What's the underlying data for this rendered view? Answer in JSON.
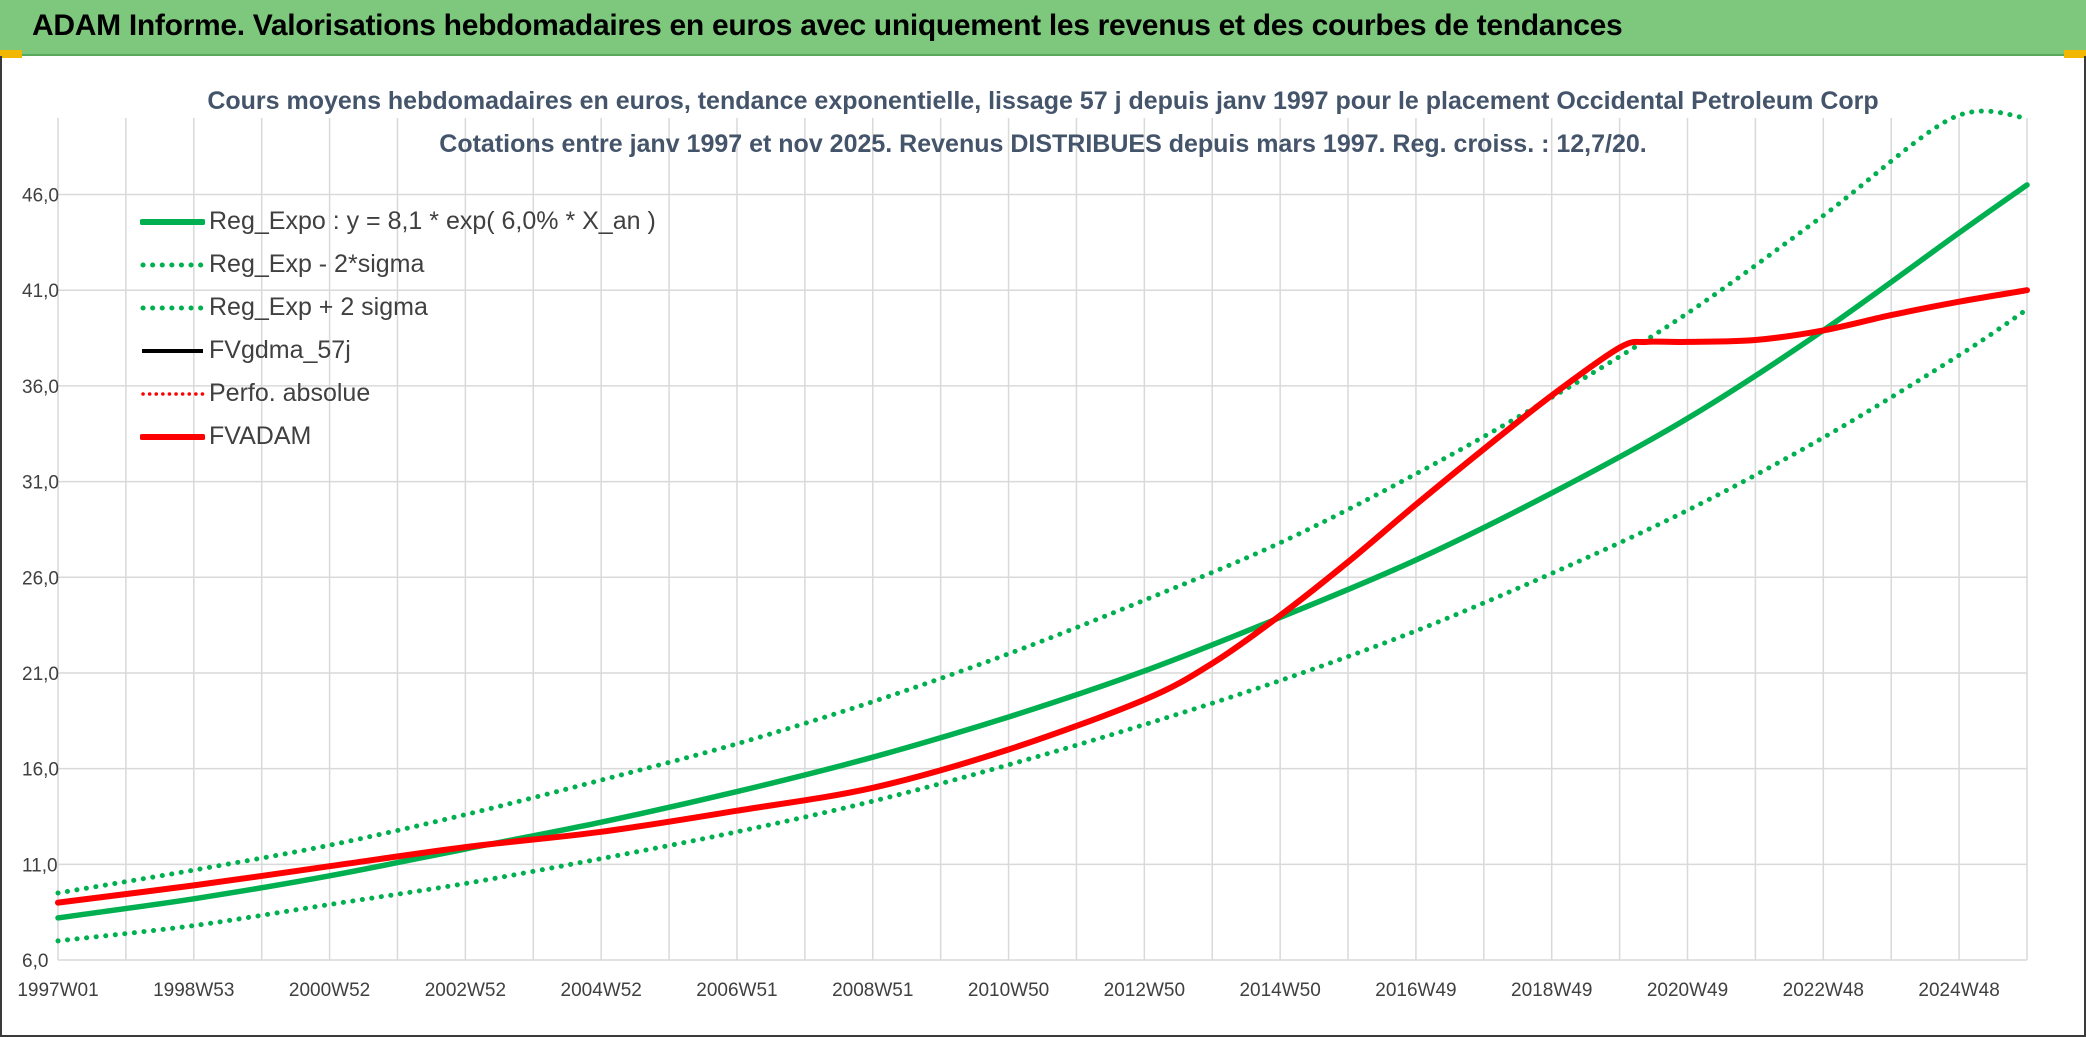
{
  "header": {
    "title": "ADAM Informe. Valorisations hebdomadaires en euros avec uniquement les revenus et des courbes de tendances"
  },
  "chart_data": {
    "type": "line",
    "title": "Cours moyens hebdomadaires en euros, tendance exponentielle, lissage 57 j depuis janv 1997 pour le placement Occidental Petroleum Corp",
    "subtitle": "Cotations entre janv 1997 et nov 2025. Revenus DISTRIBUES depuis mars 1997. Reg. croiss. : 12,7/20.",
    "xlabel": "",
    "ylabel": "",
    "x_range": [
      1997.0,
      2026.0
    ],
    "ylim": [
      6.0,
      50.0
    ],
    "grid": true,
    "legend_position": "top-left",
    "x_ticks": [
      {
        "label": "1997W01",
        "x": 1997.0
      },
      {
        "label": "1998W53",
        "x": 1999.0
      },
      {
        "label": "2000W52",
        "x": 2001.0
      },
      {
        "label": "2002W52",
        "x": 2003.0
      },
      {
        "label": "2004W52",
        "x": 2005.0
      },
      {
        "label": "2006W51",
        "x": 2007.0
      },
      {
        "label": "2008W51",
        "x": 2009.0
      },
      {
        "label": "2010W50",
        "x": 2011.0
      },
      {
        "label": "2012W50",
        "x": 2013.0
      },
      {
        "label": "2014W50",
        "x": 2015.0
      },
      {
        "label": "2016W49",
        "x": 2017.0
      },
      {
        "label": "2018W49",
        "x": 2019.0
      },
      {
        "label": "2020W49",
        "x": 2021.0
      },
      {
        "label": "2022W48",
        "x": 2023.0
      },
      {
        "label": "2024W48",
        "x": 2025.0
      }
    ],
    "y_ticks": [
      {
        "label": "6,0",
        "y": 6.0
      },
      {
        "label": "11,0",
        "y": 11.0
      },
      {
        "label": "16,0",
        "y": 16.0
      },
      {
        "label": "21,0",
        "y": 21.0
      },
      {
        "label": "26,0",
        "y": 26.0
      },
      {
        "label": "31,0",
        "y": 31.0
      },
      {
        "label": "36,0",
        "y": 36.0
      },
      {
        "label": "41,0",
        "y": 41.0
      },
      {
        "label": "46,0",
        "y": 46.0
      }
    ],
    "series": [
      {
        "name": "Reg_Expo : y = 8,1 * exp( 6,0% *  X_an )",
        "color": "#00b050",
        "style": "solid",
        "x": [
          1997,
          1999,
          2001,
          2003,
          2005,
          2007,
          2009,
          2011,
          2013,
          2015,
          2017,
          2019,
          2021,
          2023,
          2025,
          2026
        ],
        "y": [
          8.2,
          9.2,
          10.4,
          11.8,
          13.2,
          14.8,
          16.6,
          18.7,
          21.1,
          23.9,
          26.9,
          30.4,
          34.3,
          38.9,
          44.0,
          46.5
        ]
      },
      {
        "name": "Reg_Exp - 2*sigma",
        "color": "#00b050",
        "style": "dotted",
        "x": [
          1997,
          1999,
          2001,
          2003,
          2005,
          2007,
          2009,
          2011,
          2013,
          2015,
          2017,
          2019,
          2021,
          2023,
          2025,
          2026
        ],
        "y": [
          7.0,
          7.8,
          8.9,
          10.0,
          11.3,
          12.7,
          14.3,
          16.2,
          18.3,
          20.6,
          23.2,
          26.2,
          29.5,
          33.3,
          37.6,
          40.0
        ]
      },
      {
        "name": "Reg_Exp + 2 sigma",
        "color": "#00b050",
        "style": "dotted",
        "x": [
          1997,
          1999,
          2001,
          2003,
          2005,
          2007,
          2009,
          2011,
          2013,
          2015,
          2017,
          2019,
          2021,
          2023,
          2024.9,
          2026
        ],
        "y": [
          9.5,
          10.7,
          12.0,
          13.6,
          15.4,
          17.3,
          19.5,
          22.0,
          24.8,
          27.8,
          31.4,
          35.4,
          39.8,
          44.9,
          50.0,
          50.0
        ]
      },
      {
        "name": "FVgdma_57j",
        "color": "#000000",
        "style": "solid",
        "x": [],
        "y": []
      },
      {
        "name": "Perfo. absolue",
        "color": "#ff0000",
        "style": "dotted",
        "x": [],
        "y": []
      },
      {
        "name": "FVADAM",
        "color": "#ff0000",
        "style": "solid",
        "x": [
          1997,
          1999,
          2001,
          2003,
          2005,
          2007,
          2009,
          2011,
          2013,
          2014,
          2015,
          2016,
          2017,
          2018,
          2019,
          2020,
          2020.4,
          2021,
          2022,
          2023,
          2024,
          2025,
          2026
        ],
        "y": [
          9.0,
          9.9,
          10.9,
          11.9,
          12.7,
          13.8,
          15.0,
          17.0,
          19.6,
          21.5,
          24.0,
          26.8,
          29.8,
          32.7,
          35.5,
          38.0,
          38.3,
          38.3,
          38.4,
          38.9,
          39.7,
          40.4,
          41.0
        ]
      }
    ]
  },
  "colors": {
    "banner_bg": "#7dc87d",
    "title_text": "#44546a",
    "green": "#00b050",
    "red": "#ff0000",
    "grid": "#d9d9d9"
  }
}
